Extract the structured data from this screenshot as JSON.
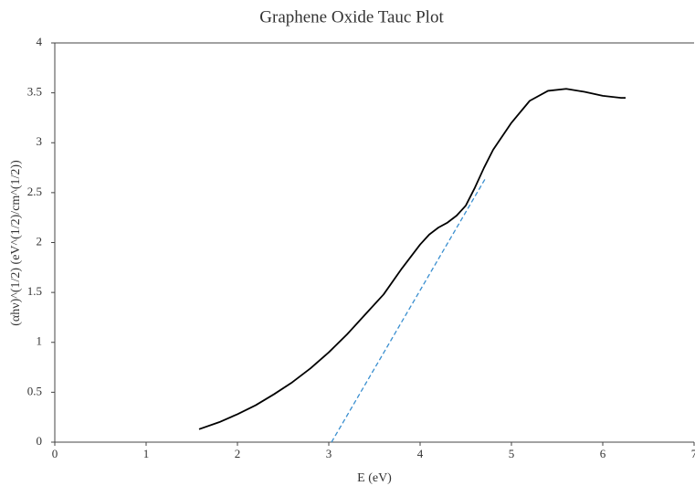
{
  "chart_data": {
    "type": "line",
    "title": "Graphene Oxide Tauc Plot",
    "xlabel": "E (eV)",
    "ylabel": "(αhν)^(1/2) (eV^(1/2)/cm^(1/2))",
    "xlim": [
      0,
      7
    ],
    "xticks": [
      0,
      1,
      2,
      3,
      4,
      5,
      6,
      7
    ],
    "ylim": [
      0,
      4
    ],
    "yticks": [
      0,
      0.5,
      1,
      1.5,
      2,
      2.5,
      3,
      3.5,
      4
    ],
    "series": [
      {
        "color": "#000000",
        "x": [
          1.58,
          1.8,
          2.0,
          2.2,
          2.4,
          2.6,
          2.8,
          3.0,
          3.2,
          3.4,
          3.6,
          3.8,
          4.0,
          4.1,
          4.2,
          4.3,
          4.4,
          4.5,
          4.6,
          4.7,
          4.8,
          5.0,
          5.2,
          5.4,
          5.6,
          5.8,
          6.0,
          6.2,
          6.25
        ],
        "values": [
          0.13,
          0.2,
          0.28,
          0.37,
          0.48,
          0.6,
          0.74,
          0.9,
          1.08,
          1.28,
          1.48,
          1.74,
          1.98,
          2.08,
          2.15,
          2.2,
          2.27,
          2.37,
          2.55,
          2.75,
          2.93,
          3.2,
          3.42,
          3.52,
          3.54,
          3.51,
          3.47,
          3.45,
          3.45
        ]
      },
      {
        "color": "#3a8fd0",
        "dashed": true,
        "x": [
          3.03,
          4.72
        ],
        "values": [
          0,
          2.65
        ]
      }
    ]
  }
}
